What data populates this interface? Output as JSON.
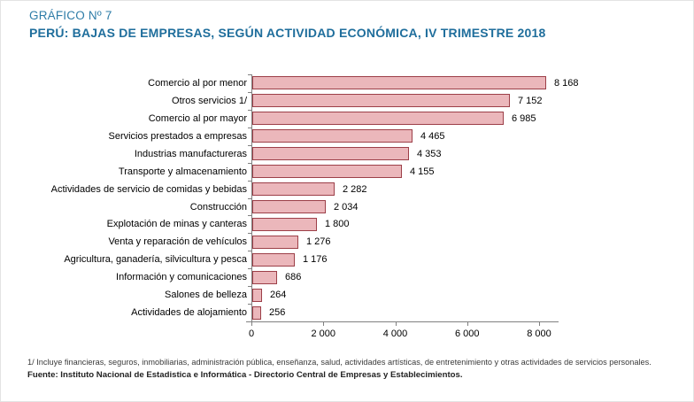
{
  "header": {
    "title_line1": "GRÁFICO Nº 7",
    "title_line2": "PERÚ: BAJAS DE EMPRESAS, SEGÚN ACTIVIDAD ECONÓMICA, IV TRIMESTRE 2018"
  },
  "chart_data": {
    "type": "bar",
    "orientation": "horizontal",
    "categories": [
      "Comercio al por menor",
      "Otros servicios 1/",
      "Comercio al por mayor",
      "Servicios prestados a empresas",
      "Industrias manufactureras",
      "Transporte y almacenamiento",
      "Actividades de servicio de comidas y bebidas",
      "Construcción",
      "Explotación de minas y canteras",
      "Venta y reparación de vehículos",
      "Agricultura, ganadería, silvicultura y pesca",
      "Información y comunicaciones",
      "Salones de belleza",
      "Actividades de alojamiento"
    ],
    "values": [
      8168,
      7152,
      6985,
      4465,
      4353,
      4155,
      2282,
      2034,
      1800,
      1276,
      1176,
      686,
      264,
      256
    ],
    "value_labels": [
      "8 168",
      "7 152",
      "6 985",
      "4 465",
      "4 353",
      "4 155",
      "2 282",
      "2 034",
      "1 800",
      "1 276",
      "1 176",
      "686",
      "264",
      "256"
    ],
    "xlim": [
      0,
      8000
    ],
    "x_ticks": [
      0,
      2000,
      4000,
      6000,
      8000
    ],
    "x_tick_labels": [
      "0",
      "2 000",
      "4 000",
      "6 000",
      "8 000"
    ],
    "grid": false,
    "legend": "none",
    "bar_fill": "#EBB7BB",
    "bar_border": "#9C3F48",
    "axis_color": "#808080"
  },
  "footer": {
    "note": "1/ Incluye financieras, seguros, inmobiliarias, administración pública, enseñanza, salud, actividades artísticas, de entretenimiento y otras actividades de servicios personales.",
    "source": "Fuente: Instituto Nacional de Estadistica e Informática - Directorio Central de Empresas y Establecimientos."
  }
}
